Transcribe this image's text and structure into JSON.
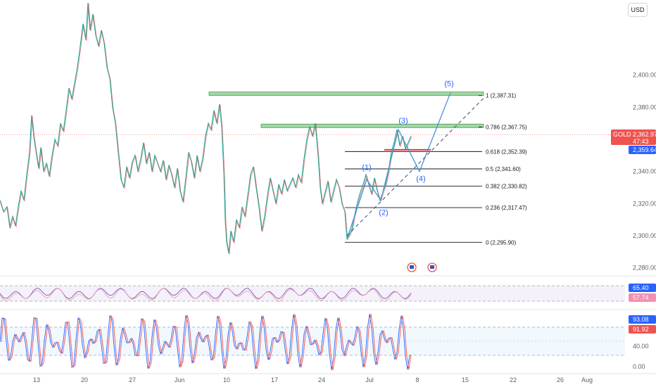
{
  "currency_button": "USD",
  "chart_data": {
    "type": "line",
    "title": "",
    "symbol": "GOLD",
    "main": {
      "y_ticks": [
        2280,
        2300,
        2320,
        2340,
        2360,
        2380,
        2400
      ],
      "y_tick_labels": [
        "2,280.00",
        "2,300.00",
        "2,320.00",
        "2,340.00",
        "2,360.00",
        "2,380.00",
        "2,400.00"
      ],
      "ylim": [
        2275,
        2445
      ],
      "price_series": [
        [
          0,
          2322
        ],
        [
          5,
          2315
        ],
        [
          10,
          2318
        ],
        [
          14,
          2305
        ],
        [
          18,
          2312
        ],
        [
          22,
          2306
        ],
        [
          26,
          2318
        ],
        [
          30,
          2328
        ],
        [
          34,
          2322
        ],
        [
          38,
          2338
        ],
        [
          42,
          2352
        ],
        [
          45,
          2375
        ],
        [
          48,
          2362
        ],
        [
          52,
          2350
        ],
        [
          55,
          2342
        ],
        [
          58,
          2355
        ],
        [
          62,
          2340
        ],
        [
          66,
          2345
        ],
        [
          70,
          2337
        ],
        [
          74,
          2350
        ],
        [
          78,
          2360
        ],
        [
          82,
          2356
        ],
        [
          86,
          2370
        ],
        [
          90,
          2365
        ],
        [
          94,
          2378
        ],
        [
          98,
          2392
        ],
        [
          102,
          2385
        ],
        [
          106,
          2395
        ],
        [
          110,
          2405
        ],
        [
          114,
          2418
        ],
        [
          118,
          2432
        ],
        [
          122,
          2422
        ],
        [
          125,
          2445
        ],
        [
          128,
          2428
        ],
        [
          132,
          2438
        ],
        [
          136,
          2425
        ],
        [
          140,
          2418
        ],
        [
          144,
          2428
        ],
        [
          148,
          2420
        ],
        [
          152,
          2405
        ],
        [
          156,
          2398
        ],
        [
          160,
          2380
        ],
        [
          164,
          2370
        ],
        [
          168,
          2352
        ],
        [
          172,
          2335
        ],
        [
          176,
          2330
        ],
        [
          180,
          2343
        ],
        [
          184,
          2336
        ],
        [
          188,
          2346
        ],
        [
          192,
          2350
        ],
        [
          196,
          2340
        ],
        [
          200,
          2348
        ],
        [
          204,
          2358
        ],
        [
          208,
          2345
        ],
        [
          212,
          2352
        ],
        [
          216,
          2340
        ],
        [
          220,
          2350
        ],
        [
          224,
          2345
        ],
        [
          228,
          2340
        ],
        [
          232,
          2347
        ],
        [
          236,
          2335
        ],
        [
          240,
          2344
        ],
        [
          244,
          2338
        ],
        [
          248,
          2330
        ],
        [
          252,
          2342
        ],
        [
          256,
          2328
        ],
        [
          260,
          2321
        ],
        [
          264,
          2336
        ],
        [
          268,
          2352
        ],
        [
          272,
          2346
        ],
        [
          276,
          2336
        ],
        [
          280,
          2350
        ],
        [
          284,
          2340
        ],
        [
          288,
          2348
        ],
        [
          292,
          2362
        ],
        [
          296,
          2370
        ],
        [
          300,
          2366
        ],
        [
          304,
          2378
        ],
        [
          308,
          2370
        ],
        [
          312,
          2382
        ],
        [
          315,
          2368
        ],
        [
          318,
          2340
        ],
        [
          320,
          2310
        ],
        [
          322,
          2296
        ],
        [
          325,
          2289
        ],
        [
          328,
          2303
        ],
        [
          332,
          2296
        ],
        [
          336,
          2310
        ],
        [
          340,
          2305
        ],
        [
          344,
          2318
        ],
        [
          348,
          2312
        ],
        [
          352,
          2325
        ],
        [
          356,
          2338
        ],
        [
          360,
          2343
        ],
        [
          364,
          2330
        ],
        [
          368,
          2318
        ],
        [
          372,
          2303
        ],
        [
          376,
          2312
        ],
        [
          380,
          2325
        ],
        [
          384,
          2336
        ],
        [
          388,
          2328
        ],
        [
          392,
          2320
        ],
        [
          396,
          2332
        ],
        [
          400,
          2326
        ],
        [
          404,
          2335
        ],
        [
          408,
          2328
        ],
        [
          412,
          2332
        ],
        [
          416,
          2336
        ],
        [
          420,
          2330
        ],
        [
          424,
          2338
        ],
        [
          428,
          2333
        ],
        [
          432,
          2348
        ],
        [
          436,
          2360
        ],
        [
          440,
          2368
        ],
        [
          444,
          2362
        ],
        [
          448,
          2370
        ],
        [
          452,
          2350
        ],
        [
          455,
          2330
        ],
        [
          458,
          2320
        ],
        [
          462,
          2327
        ],
        [
          466,
          2334
        ],
        [
          470,
          2321
        ],
        [
          474,
          2328
        ],
        [
          478,
          2335
        ],
        [
          482,
          2330
        ],
        [
          486,
          2320
        ],
        [
          490,
          2315
        ],
        [
          493,
          2298
        ],
        [
          496,
          2300
        ],
        [
          500,
          2304
        ],
        [
          504,
          2313
        ],
        [
          508,
          2321
        ],
        [
          512,
          2327
        ],
        [
          516,
          2332
        ],
        [
          520,
          2338
        ],
        [
          524,
          2332
        ],
        [
          528,
          2326
        ],
        [
          532,
          2336
        ],
        [
          536,
          2328
        ],
        [
          540,
          2322
        ],
        [
          544,
          2327
        ],
        [
          548,
          2332
        ],
        [
          552,
          2340
        ],
        [
          556,
          2352
        ],
        [
          560,
          2358
        ],
        [
          564,
          2366
        ],
        [
          568,
          2356
        ],
        [
          572,
          2362
        ],
        [
          576,
          2354
        ],
        [
          580,
          2358
        ],
        [
          584,
          2362
        ]
      ],
      "fib_levels": [
        {
          "ratio": "1",
          "price": 2387.31,
          "label": "1 (2,387.31)"
        },
        {
          "ratio": "0.786",
          "price": 2367.75,
          "label": "0.786 (2,367.75)"
        },
        {
          "ratio": "0.618",
          "price": 2352.39,
          "label": "0.618 (2,352.39)"
        },
        {
          "ratio": "0.5",
          "price": 2341.6,
          "label": "0.5 (2,341.60)"
        },
        {
          "ratio": "0.382",
          "price": 2330.82,
          "label": "0.382 (2,330.82)"
        },
        {
          "ratio": "0.236",
          "price": 2317.47,
          "label": "0.236 (2,317.47)"
        },
        {
          "ratio": "0",
          "price": 2295.9,
          "label": "0 (2,295.90)"
        }
      ],
      "wave_labels": [
        "(1)",
        "(2)",
        "(3)",
        "(4)",
        "(5)"
      ],
      "price_tags": [
        {
          "label": "GOLD",
          "value": "2,362.97",
          "sub": "47:43",
          "color": "#ef5350"
        },
        {
          "value": "2,359.64",
          "color": "#2962ff"
        }
      ]
    },
    "rsi_panel": {
      "tags": [
        {
          "value": "65.40",
          "color": "#2962ff"
        },
        {
          "value": "57.74",
          "color": "#f48fb1"
        }
      ]
    },
    "stoch_panel": {
      "y_tick_labels": [
        "40.00",
        "0.00"
      ],
      "tags": [
        {
          "value": "93.08",
          "color": "#2962ff"
        },
        {
          "value": "91.92",
          "color": "#ef5350"
        }
      ]
    },
    "x_tick_labels": [
      "13",
      "20",
      "27",
      "Jun",
      "10",
      "17",
      "24",
      "Jul",
      "8",
      "15",
      "22",
      "26",
      "Aug"
    ],
    "x_tick_colors": [
      "#5d606b",
      "#5d606b",
      "#5d606b",
      "#5d606b",
      "#5d606b",
      "#5d606b",
      "#5d606b",
      "#5d606b",
      "#5d606b",
      "#5d606b",
      "#5d606b",
      "#5d606b",
      "#5d606b"
    ]
  }
}
